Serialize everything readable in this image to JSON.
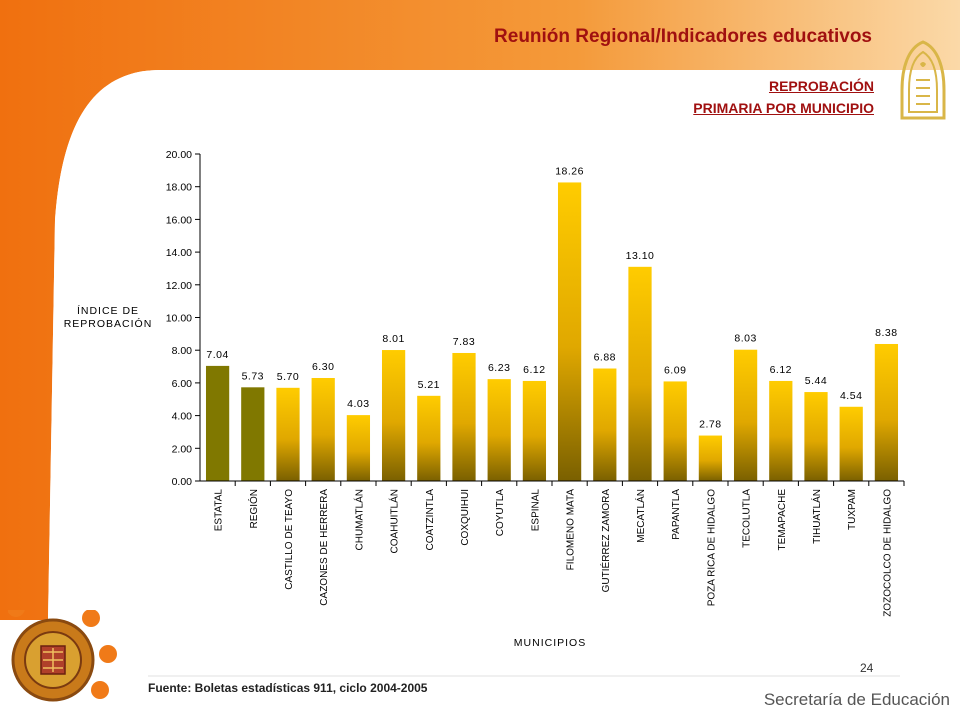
{
  "header": {
    "title_part1": "Reunión Regional",
    "title_part2": "/Indicadores educativos",
    "subtitle_line1": "REPROBACIÓN",
    "subtitle_line2": "PRIMARIA POR MUNICIPIO"
  },
  "footer": {
    "source": "Fuente: Boletas estadísticas 911, ciclo 2004-2005",
    "page_number": "24",
    "brand": "Secretaría de Educación"
  },
  "colors": {
    "highlight_bars": "#807800",
    "gradient_top": "#ffcc00",
    "gradient_bottom": "#7a6000",
    "title_red": "#a01010",
    "orange": "#f07a18"
  },
  "chart_data": {
    "type": "bar",
    "ylabel": "ÍNDICE DE REPROBACIÓN",
    "ylabel_lines": [
      "ÍNDICE DE",
      "REPROBACIÓN"
    ],
    "xlabel": "MUNICIPIOS",
    "ylim": [
      0,
      20
    ],
    "ytick_step": 2,
    "yticks": [
      "0.00",
      "2.00",
      "4.00",
      "6.00",
      "8.00",
      "10.00",
      "12.00",
      "14.00",
      "16.00",
      "18.00",
      "20.00"
    ],
    "grid": false,
    "categories": [
      "ESTATAL",
      "REGIÓN",
      "CASTILLO DE TEAYO",
      "CAZONES DE HERRERA",
      "CHUMATLÁN",
      "COAHUITLÁN",
      "COATZINTLA",
      "COXQUIHUI",
      "COYUTLA",
      "ESPINAL",
      "FILOMENO MATA",
      "GUTIÉRREZ ZAMORA",
      "MECATLÁN",
      "PAPANTLA",
      "POZA RICA DE HIDALGO",
      "TECOLUTLA",
      "TEMAPACHE",
      "TIHUATLÁN",
      "TUXPAM",
      "ZOZOCOLCO DE HIDALGO"
    ],
    "values": [
      7.04,
      5.73,
      5.7,
      6.3,
      4.03,
      8.01,
      5.21,
      7.83,
      6.23,
      6.12,
      18.26,
      6.88,
      13.1,
      6.09,
      2.78,
      8.03,
      6.12,
      5.44,
      4.54,
      8.38
    ],
    "value_labels": [
      "7.04",
      "5.73",
      "5.70",
      "6.30",
      "4.03",
      "8.01",
      "5.21",
      "7.83",
      "6.23",
      "6.12",
      "18.26",
      "6.88",
      "13.10",
      "6.09",
      "2.78",
      "8.03",
      "6.12",
      "5.44",
      "4.54",
      "8.38"
    ],
    "highlighted_categories": [
      "ESTATAL",
      "REGIÓN"
    ]
  }
}
